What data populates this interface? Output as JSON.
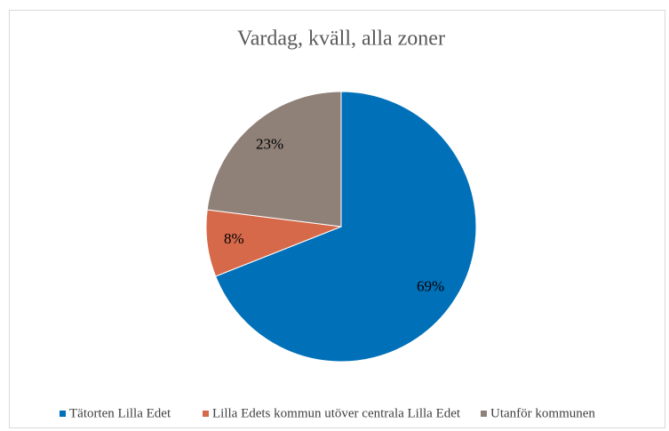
{
  "chart_data": {
    "type": "pie",
    "title": "Vardag, kväll, alla zoner",
    "categories": [
      "Tätorten Lilla Edet",
      "Lilla Edets kommun utöver centrala Lilla Edet",
      "Utanför kommunen"
    ],
    "values": [
      69,
      8,
      23
    ],
    "value_labels": [
      "69%",
      "8%",
      "23%"
    ],
    "colors": [
      "#0070b8",
      "#d6694a",
      "#8f8078"
    ],
    "legend": "bottom"
  }
}
